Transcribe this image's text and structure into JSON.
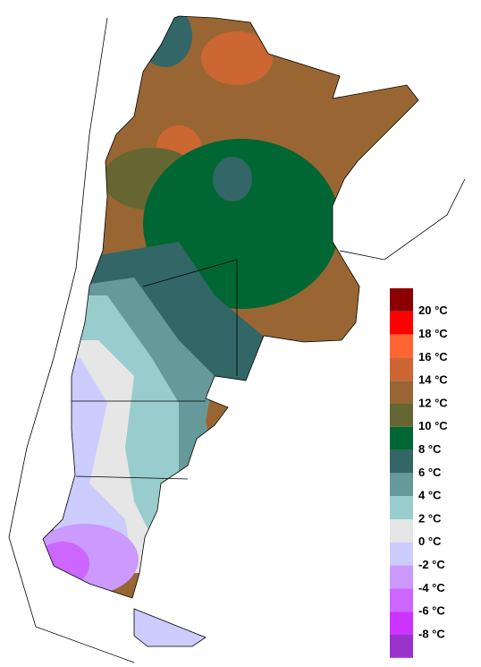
{
  "legend": {
    "colors": [
      "#8b0000",
      "#ff0000",
      "#ff6633",
      "#cc6633",
      "#996633",
      "#666633",
      "#006633",
      "#336666",
      "#669999",
      "#99cccc",
      "#e6e6e6",
      "#ccccff",
      "#cc99ff",
      "#cc66ff",
      "#cc33ff",
      "#9933cc"
    ],
    "labels": [
      "20 °C",
      "18 °C",
      "16 °C",
      "14 °C",
      "12 °C",
      "10 °C",
      "8 °C",
      "6 °C",
      "4 °C",
      "2 °C",
      "0 °C",
      "-2 °C",
      "-4 °C",
      "-6 °C",
      "-8 °C"
    ]
  }
}
